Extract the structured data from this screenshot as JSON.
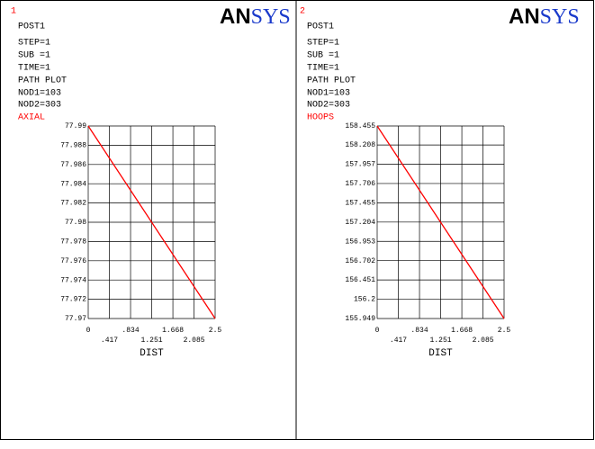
{
  "chart_data": [
    {
      "type": "line",
      "window": "1",
      "logo": [
        "AN",
        "SYS"
      ],
      "info": [
        "POST1",
        "STEP=1",
        "SUB =1",
        "TIME=1",
        "PATH PLOT",
        "NOD1=103",
        "NOD2=303"
      ],
      "xlabel": "DIST",
      "x": [
        0,
        2.5
      ],
      "series": [
        {
          "name": "AXIAL",
          "color": "#ff0000",
          "values": [
            77.99,
            77.97
          ]
        }
      ],
      "xlim": [
        0,
        2.5
      ],
      "xticks": [
        0,
        {
          "value": 0.417,
          "label": ".417"
        },
        {
          "value": 0.834,
          "label": ".834"
        },
        {
          "value": 1.251,
          "label": "1.251"
        },
        {
          "value": 1.668,
          "label": "1.668"
        },
        {
          "value": 2.085,
          "label": "2.085"
        },
        2.5
      ],
      "ylim": [
        77.97,
        77.99
      ],
      "yticks": [
        77.97,
        77.972,
        77.974,
        77.976,
        77.978,
        77.98,
        77.982,
        77.984,
        77.986,
        77.988,
        77.99
      ],
      "grid": true
    },
    {
      "type": "line",
      "window": "2",
      "logo": [
        "AN",
        "SYS"
      ],
      "info": [
        "POST1",
        "STEP=1",
        "SUB =1",
        "TIME=1",
        "PATH PLOT",
        "NOD1=103",
        "NOD2=303"
      ],
      "xlabel": "DIST",
      "x": [
        0,
        2.5
      ],
      "series": [
        {
          "name": "HOOPS",
          "color": "#ff0000",
          "values": [
            158.455,
            155.949
          ]
        }
      ],
      "xlim": [
        0,
        2.5
      ],
      "xticks": [
        0,
        {
          "value": 0.417,
          "label": ".417"
        },
        {
          "value": 0.834,
          "label": ".834"
        },
        {
          "value": 1.251,
          "label": "1.251"
        },
        {
          "value": 1.668,
          "label": "1.668"
        },
        {
          "value": 2.085,
          "label": "2.085"
        },
        2.5
      ],
      "ylim": [
        155.949,
        158.455
      ],
      "yticks": [
        155.949,
        156.2,
        156.451,
        156.702,
        156.953,
        157.204,
        157.455,
        157.706,
        157.957,
        158.208,
        158.455
      ],
      "grid": true
    }
  ]
}
